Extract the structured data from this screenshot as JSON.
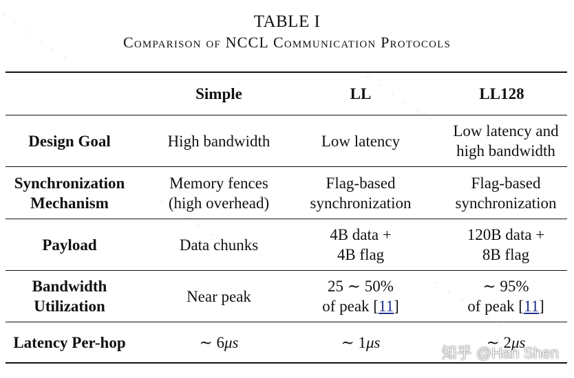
{
  "caption": {
    "title": "TABLE I",
    "subtitle": "Comparison of NCCL Communication Protocols"
  },
  "table": {
    "headers": [
      "",
      "Simple",
      "LL",
      "LL128"
    ],
    "rows": [
      {
        "label": [
          "Design Goal"
        ],
        "simple": [
          "High bandwidth"
        ],
        "ll": [
          "Low latency"
        ],
        "ll128": [
          "Low latency and",
          "high bandwidth"
        ]
      },
      {
        "label": [
          "Synchronization",
          "Mechanism"
        ],
        "simple": [
          "Memory fences",
          "(high overhead)"
        ],
        "ll": [
          "Flag-based",
          "synchronization"
        ],
        "ll128": [
          "Flag-based",
          "synchronization"
        ]
      },
      {
        "label": [
          "Payload"
        ],
        "simple": [
          "Data chunks"
        ],
        "ll": [
          "4B data +",
          "4B flag"
        ],
        "ll128": [
          "120B data +",
          "8B flag"
        ]
      },
      {
        "label": [
          "Bandwidth",
          "Utilization"
        ],
        "simple": [
          "Near peak"
        ],
        "ll": {
          "line1": "25 ∼ 50%",
          "line2_prefix": "of peak [",
          "ref": "11",
          "line2_suffix": "]"
        },
        "ll128": {
          "line1": "∼ 95%",
          "line2_prefix": "of peak [",
          "ref": "11",
          "line2_suffix": "]"
        }
      },
      {
        "label": [
          "Latency Per-hop"
        ],
        "simple": {
          "prefix": "∼ 6",
          "unit": "μs"
        },
        "ll": {
          "prefix": "∼ 1",
          "unit": "μs"
        },
        "ll128": {
          "prefix": "∼ 2",
          "unit": "μs"
        }
      }
    ]
  },
  "watermark": "知乎 @Han Shen"
}
